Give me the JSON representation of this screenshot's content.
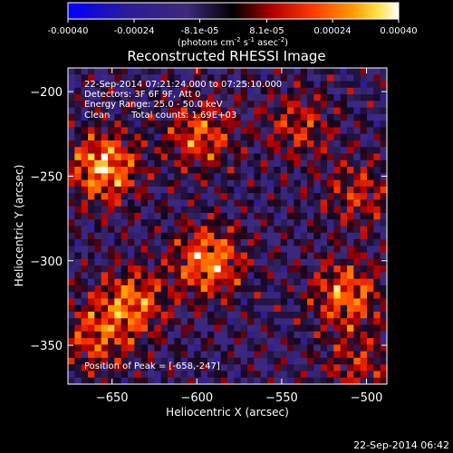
{
  "colorbar": {
    "tick_labels": [
      "-0.00040",
      "-0.00024",
      "-8.1e-05",
      "8.1e-05",
      "0.00024",
      "0.00040"
    ],
    "tick_values": [
      -0.0004,
      -0.00024,
      -8.1e-05,
      8.1e-05,
      0.00024,
      0.0004
    ],
    "range": [
      -0.0004,
      0.0004
    ],
    "units_prefix": "(photons cm",
    "units_exp1": "-2",
    "units_mid": " s",
    "units_exp2": "-1",
    "units_mid2": " asec",
    "units_exp3": "-2",
    "units_suffix": ")",
    "colors": [
      "#0000ff",
      "#2c1b9a",
      "#3d2a7a",
      "#000000",
      "#b40000",
      "#ff3a00",
      "#ff9a00",
      "#ffe24a",
      "#ffffff"
    ]
  },
  "annotations": {
    "time_range": "22-Sep-2014 07:21:24.000 to 07:25:10.000",
    "detectors": "Detectors: 3F 6F 9F, Att 0",
    "energy_range": "Energy Range: 25.0 - 50.0 keV",
    "method_clean": "Clean",
    "total_counts": "Total counts: 1.69E+03",
    "peak_position": "Position of Peak = [-658,-247]"
  },
  "footer": {
    "timestamp": "22-Sep-2014 06:42"
  },
  "chart_data": {
    "type": "heatmap",
    "title": "Reconstructed RHESSI Image",
    "xlabel": "Heliocentric X (arcsec)",
    "ylabel": "Heliocentric Y (arcsec)",
    "xlim": [
      -676,
      -488
    ],
    "ylim": [
      -373,
      -186
    ],
    "x_ticks": [
      -650,
      -600,
      -550,
      -500
    ],
    "y_ticks": [
      -200,
      -250,
      -300,
      -350
    ],
    "value_range": [
      -0.0004,
      0.0004
    ],
    "peak_position": [
      -658,
      -247
    ],
    "bright_sources": [
      {
        "x": -655,
        "y": -245,
        "peak": 0.0004
      },
      {
        "x": -593,
        "y": -300,
        "peak": 0.00036
      },
      {
        "x": -512,
        "y": -320,
        "peak": 0.00032
      },
      {
        "x": -638,
        "y": -325,
        "peak": 0.0003
      },
      {
        "x": -598,
        "y": -226,
        "peak": 0.00026
      },
      {
        "x": -660,
        "y": -345,
        "peak": 0.00024
      },
      {
        "x": -540,
        "y": -220,
        "peak": 0.0002
      },
      {
        "x": -505,
        "y": -260,
        "peak": 0.0002
      },
      {
        "x": -505,
        "y": -362,
        "peak": 0.00018
      }
    ],
    "grid": false
  }
}
